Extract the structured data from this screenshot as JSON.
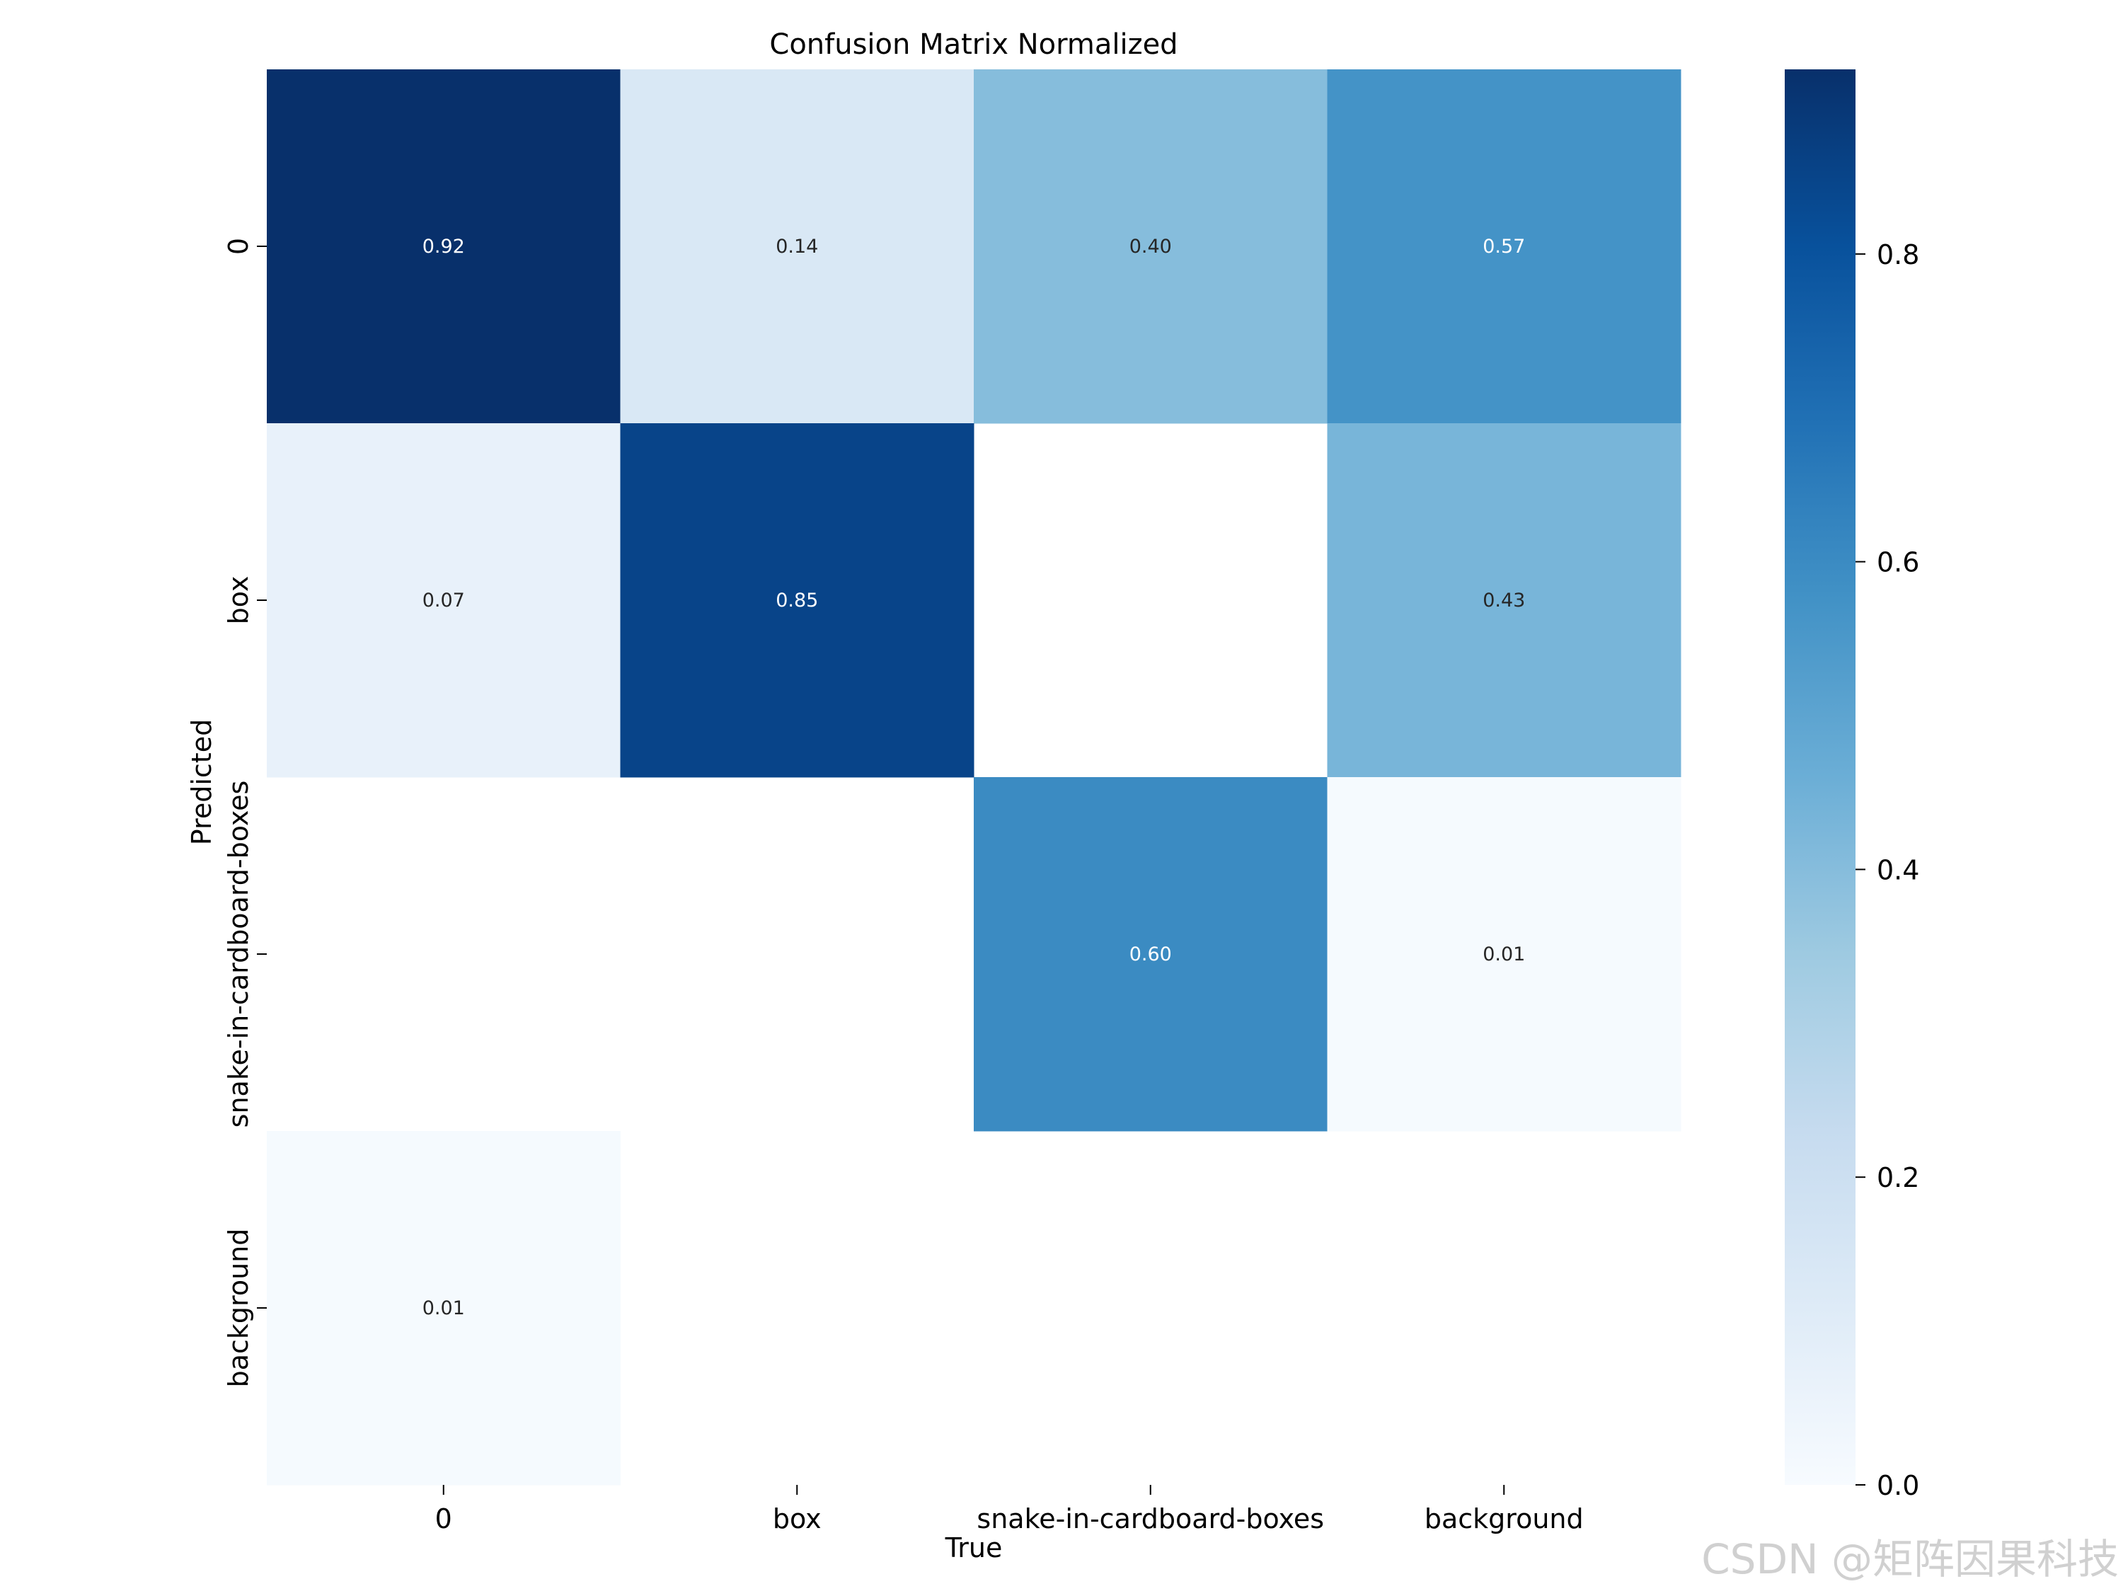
{
  "chart_data": {
    "type": "heatmap",
    "title": "Confusion Matrix Normalized",
    "xlabel": "True",
    "ylabel": "Predicted",
    "x_categories": [
      "0",
      "box",
      "snake-in-cardboard-boxes",
      "background"
    ],
    "y_categories": [
      "0",
      "box",
      "snake-in-cardboard-boxes",
      "background"
    ],
    "values": [
      [
        0.92,
        0.14,
        0.4,
        0.57
      ],
      [
        0.07,
        0.85,
        null,
        0.43
      ],
      [
        null,
        null,
        0.6,
        0.01
      ],
      [
        0.01,
        null,
        null,
        null
      ]
    ],
    "value_labels": [
      [
        "0.92",
        "0.14",
        "0.40",
        "0.57"
      ],
      [
        "0.07",
        "0.85",
        "",
        "0.43"
      ],
      [
        "",
        "",
        "0.60",
        "0.01"
      ],
      [
        "0.01",
        "",
        "",
        ""
      ]
    ],
    "colormap": "Blues",
    "vmin": 0.0,
    "vmax": 0.92,
    "colorbar": {
      "ticks": [
        0.0,
        0.2,
        0.4,
        0.6,
        0.8
      ],
      "tick_labels": [
        "0.0",
        "0.2",
        "0.4",
        "0.6",
        "0.8"
      ]
    },
    "grid": false
  },
  "watermark": "CSDN @矩阵因果科技"
}
